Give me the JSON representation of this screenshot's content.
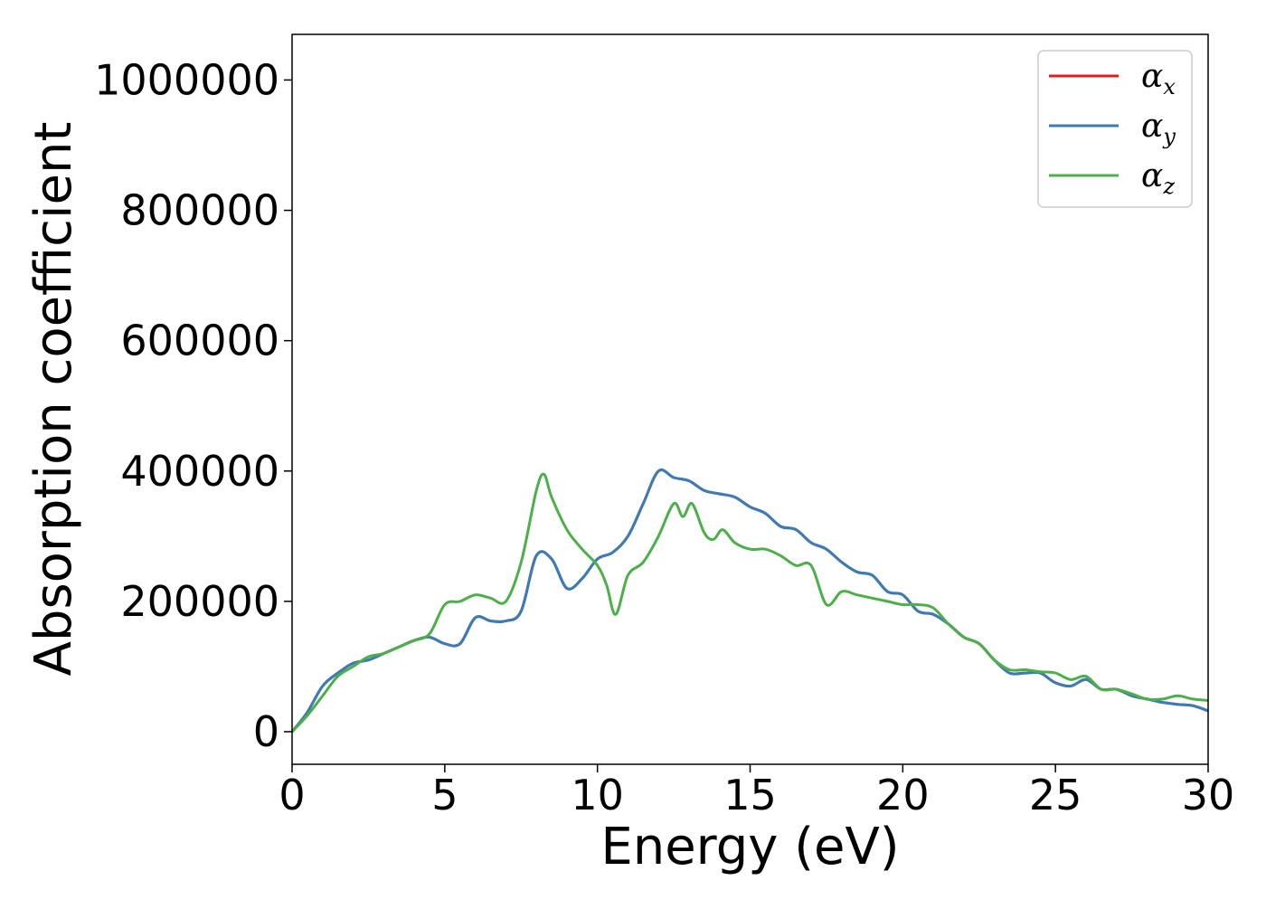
{
  "chart_data": {
    "type": "line",
    "title": "",
    "xlabel": "Energy (eV)",
    "ylabel": "Absorption coefficient",
    "xlim": [
      0,
      30
    ],
    "ylim": [
      -50000,
      1070000
    ],
    "xticks": [
      0,
      5,
      10,
      15,
      20,
      25,
      30
    ],
    "yticks": [
      0,
      200000,
      400000,
      600000,
      800000,
      1000000
    ],
    "xtick_labels": [
      "0",
      "5",
      "10",
      "15",
      "20",
      "25",
      "30"
    ],
    "ytick_labels": [
      "0",
      "200000",
      "400000",
      "600000",
      "800000",
      "1000000"
    ],
    "grid": false,
    "legend_position": "top-right",
    "colors": {
      "x": "#e41a1c",
      "y": "#377eb8",
      "z": "#4daf4a"
    },
    "series": [
      {
        "key": "x",
        "name": "α",
        "subscript": "x",
        "color": "#e41a1c",
        "x": [
          0,
          0.5,
          1,
          1.5,
          2,
          2.5,
          3,
          3.5,
          4,
          4.5,
          5,
          5.5,
          6,
          6.5,
          7,
          7.5,
          8,
          8.5,
          9,
          9.5,
          10,
          10.5,
          11,
          11.5,
          12,
          12.5,
          13,
          13.5,
          14,
          14.5,
          15,
          15.5,
          16,
          16.5,
          17,
          17.5,
          18,
          18.5,
          19,
          19.5,
          20,
          20.5,
          21,
          21.5,
          22,
          22.5,
          23,
          23.5,
          24,
          24.5,
          25,
          25.5,
          26,
          26.5,
          27,
          27.5,
          28,
          28.5,
          29,
          29.5,
          30
        ],
        "y": [
          0,
          30000,
          70000,
          90000,
          105000,
          110000,
          120000,
          130000,
          140000,
          145000,
          135000,
          135000,
          175000,
          170000,
          170000,
          185000,
          270000,
          265000,
          220000,
          235000,
          265000,
          275000,
          300000,
          350000,
          400000,
          390000,
          385000,
          370000,
          365000,
          360000,
          345000,
          335000,
          315000,
          310000,
          290000,
          280000,
          260000,
          245000,
          240000,
          215000,
          210000,
          185000,
          180000,
          165000,
          145000,
          135000,
          110000,
          90000,
          90000,
          90000,
          75000,
          70000,
          80000,
          65000,
          65000,
          55000,
          50000,
          45000,
          42000,
          40000,
          32000
        ]
      },
      {
        "key": "y",
        "name": "α",
        "subscript": "y",
        "color": "#377eb8",
        "x": [
          0,
          0.5,
          1,
          1.5,
          2,
          2.5,
          3,
          3.5,
          4,
          4.5,
          5,
          5.5,
          6,
          6.5,
          7,
          7.5,
          8,
          8.5,
          9,
          9.5,
          10,
          10.5,
          11,
          11.5,
          12,
          12.5,
          13,
          13.5,
          14,
          14.5,
          15,
          15.5,
          16,
          16.5,
          17,
          17.5,
          18,
          18.5,
          19,
          19.5,
          20,
          20.5,
          21,
          21.5,
          22,
          22.5,
          23,
          23.5,
          24,
          24.5,
          25,
          25.5,
          26,
          26.5,
          27,
          27.5,
          28,
          28.5,
          29,
          29.5,
          30
        ],
        "y": [
          0,
          30000,
          70000,
          90000,
          105000,
          110000,
          120000,
          130000,
          140000,
          145000,
          135000,
          135000,
          175000,
          170000,
          170000,
          185000,
          270000,
          265000,
          220000,
          235000,
          265000,
          275000,
          300000,
          350000,
          400000,
          390000,
          385000,
          370000,
          365000,
          360000,
          345000,
          335000,
          315000,
          310000,
          290000,
          280000,
          260000,
          245000,
          240000,
          215000,
          210000,
          185000,
          180000,
          165000,
          145000,
          135000,
          110000,
          90000,
          90000,
          90000,
          75000,
          70000,
          80000,
          65000,
          65000,
          55000,
          50000,
          45000,
          42000,
          40000,
          32000
        ]
      },
      {
        "key": "z",
        "name": "α",
        "subscript": "z",
        "color": "#4daf4a",
        "x": [
          0,
          0.5,
          1,
          1.5,
          2,
          2.5,
          3,
          3.5,
          4,
          4.5,
          5,
          5.5,
          6,
          6.5,
          7,
          7.5,
          8,
          8.25,
          8.5,
          9,
          9.5,
          10,
          10.3,
          10.6,
          11,
          11.5,
          12,
          12.5,
          12.8,
          13.1,
          13.5,
          13.8,
          14.1,
          14.5,
          15,
          15.5,
          16,
          16.5,
          17,
          17.5,
          18,
          18.5,
          19,
          19.5,
          20,
          20.5,
          21,
          21.5,
          22,
          22.5,
          23,
          23.5,
          24,
          24.5,
          25,
          25.5,
          26,
          26.5,
          27,
          27.5,
          28,
          28.5,
          29,
          29.5,
          30
        ],
        "y": [
          0,
          25000,
          55000,
          85000,
          100000,
          115000,
          120000,
          130000,
          140000,
          150000,
          195000,
          200000,
          210000,
          205000,
          200000,
          260000,
          370000,
          395000,
          360000,
          310000,
          280000,
          255000,
          225000,
          180000,
          240000,
          260000,
          300000,
          350000,
          330000,
          350000,
          305000,
          295000,
          310000,
          290000,
          280000,
          280000,
          270000,
          255000,
          255000,
          195000,
          215000,
          210000,
          205000,
          200000,
          195000,
          195000,
          190000,
          165000,
          145000,
          135000,
          110000,
          95000,
          95000,
          92000,
          90000,
          80000,
          85000,
          65000,
          65000,
          58000,
          50000,
          50000,
          55000,
          50000,
          48000
        ]
      }
    ]
  }
}
